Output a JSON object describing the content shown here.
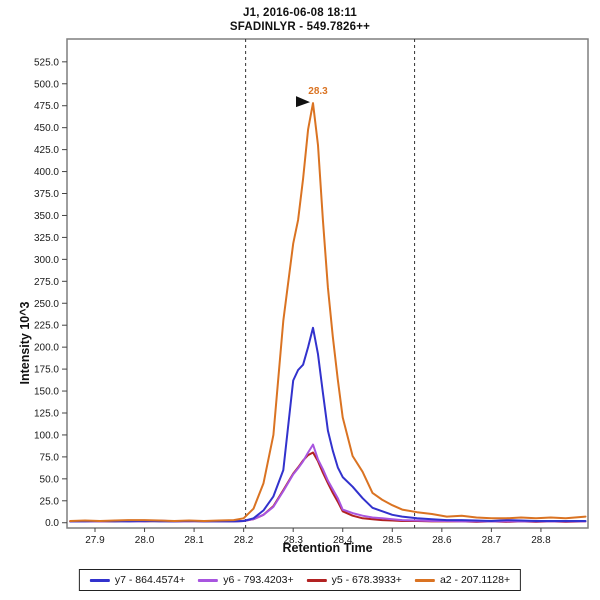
{
  "header": {
    "line1": "J1, 2016-06-08 18:11",
    "line2": "SFADINLYR - 549.7826++"
  },
  "axes": {
    "x_label": "Retention Time",
    "y_label": "Intensity 10^3"
  },
  "colors": {
    "frame": "#7f7f7f",
    "tick": "#444444",
    "boundary_line": "#333333",
    "annotation_arrow": "#111111",
    "background": "#ffffff"
  },
  "chart_data": {
    "type": "line",
    "title": "J1, 2016-06-08 18:11",
    "subtitle": "SFADINLYR - 549.7826++",
    "xlabel": "Retention Time",
    "ylabel": "Intensity 10^3",
    "grid": false,
    "legend_position": "bottom",
    "xlim": [
      27.8435,
      28.895
    ],
    "ylim": [
      -6,
      551
    ],
    "xticks": [
      27.9,
      28.0,
      28.1,
      28.2,
      28.3,
      28.4,
      28.5,
      28.6,
      28.7,
      28.8
    ],
    "yticks": [
      0,
      25,
      50,
      75,
      100,
      125,
      150,
      175,
      200,
      225,
      250,
      275,
      300,
      325,
      350,
      375,
      400,
      425,
      450,
      475,
      500,
      525
    ],
    "integration_boundaries": [
      28.204,
      28.545
    ],
    "peak_annotation": {
      "label": "28.3",
      "x": 28.34,
      "y": 478
    },
    "x": [
      27.85,
      27.88,
      27.91,
      27.94,
      27.97,
      28.0,
      28.03,
      28.06,
      28.09,
      28.12,
      28.15,
      28.18,
      28.2,
      28.22,
      28.24,
      28.26,
      28.28,
      28.3,
      28.31,
      28.32,
      28.33,
      28.34,
      28.35,
      28.36,
      28.37,
      28.38,
      28.39,
      28.4,
      28.42,
      28.44,
      28.46,
      28.48,
      28.5,
      28.52,
      28.55,
      28.58,
      28.61,
      28.64,
      28.67,
      28.7,
      28.73,
      28.76,
      28.79,
      28.82,
      28.85,
      28.89
    ],
    "series": [
      {
        "name": "y7",
        "label": "y7 - 864.4574+",
        "color": "#3232CD",
        "values": [
          1.5,
          1.5,
          2,
          1.5,
          1.5,
          2,
          1.5,
          1.5,
          2,
          1.5,
          1.5,
          1.5,
          2,
          5,
          14,
          30,
          60,
          162,
          174,
          180,
          200,
          222,
          192,
          148,
          105,
          82,
          63,
          52,
          41,
          28,
          17,
          13,
          9,
          7,
          5,
          4,
          3,
          3,
          2.5,
          2,
          3,
          2.5,
          2,
          2,
          2,
          2
        ]
      },
      {
        "name": "y6",
        "label": "y6 - 793.4203+",
        "color": "#A855DF",
        "values": [
          1.5,
          1.5,
          1.5,
          2,
          1.5,
          1.5,
          2.5,
          1.5,
          1.5,
          2,
          1.5,
          1.5,
          2,
          4,
          9,
          18,
          36,
          55,
          62,
          70,
          80,
          89,
          72,
          61,
          48,
          38,
          28,
          15,
          11,
          8,
          6,
          5,
          4,
          3,
          2.5,
          2,
          2,
          1.5,
          1.5,
          1.5,
          1.5,
          1.5,
          1.5,
          1.5,
          1.5,
          1.5
        ]
      },
      {
        "name": "y5",
        "label": "y5 - 678.3933+",
        "color": "#B22222",
        "values": [
          1.5,
          2,
          1.5,
          1.5,
          2.5,
          1.5,
          2,
          1.5,
          2,
          1.5,
          2,
          1.5,
          2,
          4,
          9,
          19,
          37,
          56,
          63,
          71,
          77,
          80,
          70,
          57,
          45,
          34,
          24,
          13,
          8,
          5,
          4,
          3,
          2.5,
          2,
          2,
          1.5,
          1.5,
          1.5,
          1,
          1.5,
          1,
          1.5,
          1,
          1.5,
          1,
          1.5
        ]
      },
      {
        "name": "a2",
        "label": "a2 - 207.1128+",
        "color": "#DA7322",
        "values": [
          2,
          2.5,
          2,
          2.5,
          3,
          3,
          2.5,
          2,
          2.5,
          2,
          2.5,
          3,
          5,
          16,
          45,
          100,
          230,
          318,
          345,
          392,
          448,
          478,
          430,
          345,
          268,
          212,
          163,
          120,
          76,
          58,
          34,
          26,
          20,
          15,
          12,
          10,
          7,
          8,
          6,
          5,
          5,
          6,
          5,
          6,
          5,
          7
        ]
      }
    ]
  }
}
